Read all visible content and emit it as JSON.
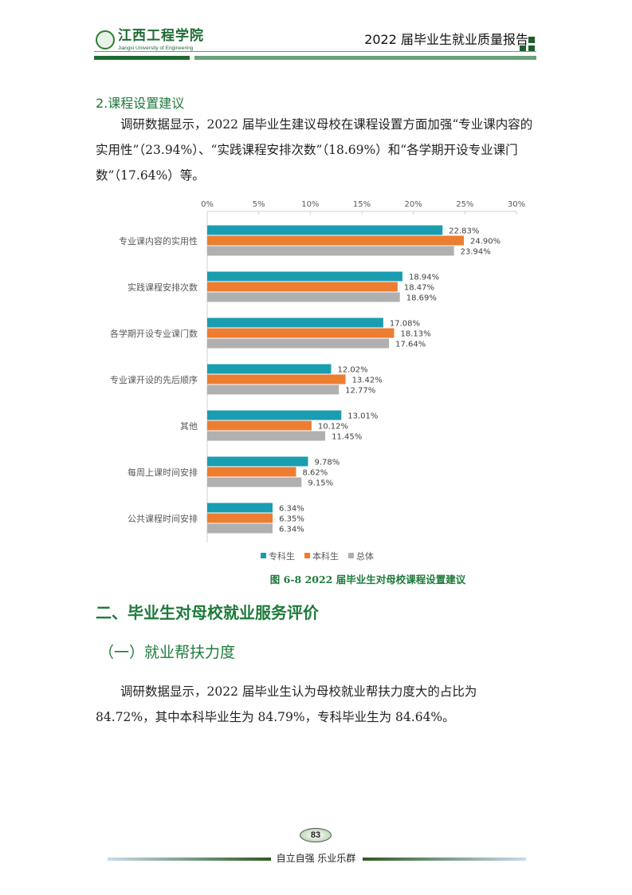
{
  "header": {
    "logo_cn": "江西工程学院",
    "logo_en": "Jiangxi University of Engineering",
    "report_title": "2022 届毕业生就业质量报告"
  },
  "section_2": {
    "heading": "2.课程设置建议",
    "paragraph": "调研数据显示，2022 届毕业生建议母校在课程设置方面加强“专业课内容的实用性”（23.94%）、“实践课程安排次数”（18.69%）和“各学期开设专业课门数”（17.64%）等。"
  },
  "chart_data": {
    "type": "bar",
    "orientation": "horizontal",
    "categories": [
      "专业课内容的实用性",
      "实践课程安排次数",
      "各学期开设专业课门数",
      "专业课开设的先后顺序",
      "其他",
      "每周上课时间安排",
      "公共课程时间安排"
    ],
    "series": [
      {
        "name": "专科生",
        "color": "#1a9db0",
        "values": [
          22.83,
          18.94,
          17.08,
          12.02,
          13.01,
          9.78,
          6.34
        ],
        "labels": [
          "22.83%",
          "18.94%",
          "17.08%",
          "12.02%",
          "13.01%",
          "9.78%",
          "6.34%"
        ]
      },
      {
        "name": "本科生",
        "color": "#ed7d31",
        "values": [
          24.9,
          18.47,
          18.13,
          13.42,
          10.12,
          8.62,
          6.35
        ],
        "labels": [
          "24.90%",
          "18.47%",
          "18.13%",
          "13.42%",
          "10.12%",
          "8.62%",
          "6.35%"
        ]
      },
      {
        "name": "总体",
        "color": "#b0b0b0",
        "values": [
          23.94,
          18.69,
          17.64,
          12.77,
          11.45,
          9.15,
          6.34
        ],
        "labels": [
          "23.94%",
          "18.69%",
          "17.64%",
          "12.77%",
          "11.45%",
          "9.15%",
          "6.34%"
        ]
      }
    ],
    "xlim": [
      0,
      30
    ],
    "ticks": [
      "0%",
      "5%",
      "10%",
      "15%",
      "20%",
      "25%",
      "30%"
    ],
    "legend": "bottom",
    "title": "图 6-8 2022 届毕业生对母校课程设置建议"
  },
  "section_two": {
    "heading": "二、毕业生对母校就业服务评价",
    "sub_heading": "（一）就业帮扶力度",
    "paragraph": "调研数据显示，2022 届毕业生认为母校就业帮扶力度大的占比为 84.72%，其中本科毕业生为 84.79%，专科毕业生为 84.64%。"
  },
  "footer": {
    "page_number": "83",
    "motto": "自立自强  乐业乐群"
  }
}
